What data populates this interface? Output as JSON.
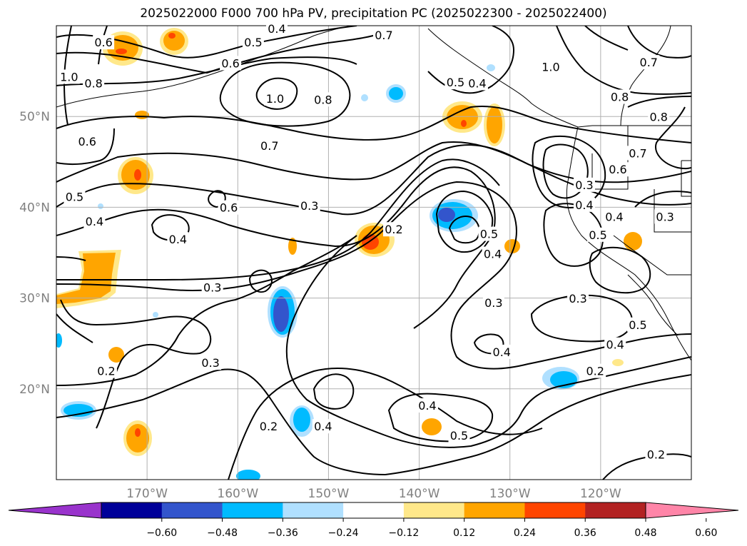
{
  "title": "2025022000 F000 700 hPa PV, precipitation PC (2025022300 - 2025022400)",
  "chart_data": {
    "type": "contour_map",
    "map": {
      "lon_range": [
        -180,
        -110
      ],
      "lat_range": [
        10,
        60
      ],
      "lon_ticks": [
        -170,
        -160,
        -150,
        -140,
        -130,
        -120
      ],
      "lon_tick_labels": [
        "170°W",
        "160°W",
        "150°W",
        "140°W",
        "130°W",
        "120°W"
      ],
      "lat_ticks": [
        20,
        30,
        40,
        50
      ],
      "lat_tick_labels": [
        "20°N",
        "30°N",
        "40°N",
        "50°N"
      ],
      "grid": true,
      "tick_label_color": "#808080"
    },
    "pv_contour_labels": [
      {
        "text": "0.6",
        "lon": -174.8,
        "lat": 58.1
      },
      {
        "text": "0.4",
        "lon": -155.7,
        "lat": 59.6
      },
      {
        "text": "0.5",
        "lon": -158.3,
        "lat": 58.1
      },
      {
        "text": "0.6",
        "lon": -160.8,
        "lat": 55.8
      },
      {
        "text": "0.7",
        "lon": -143.9,
        "lat": 58.9
      },
      {
        "text": "1.0",
        "lon": -178.6,
        "lat": 54.3
      },
      {
        "text": "0.8",
        "lon": -175.9,
        "lat": 53.6
      },
      {
        "text": "1.0",
        "lon": -155.9,
        "lat": 51.9
      },
      {
        "text": "0.8",
        "lon": -150.6,
        "lat": 51.8
      },
      {
        "text": "0.5",
        "lon": -136.0,
        "lat": 53.7
      },
      {
        "text": "0.4",
        "lon": -133.6,
        "lat": 53.6
      },
      {
        "text": "1.0",
        "lon": -125.5,
        "lat": 55.4
      },
      {
        "text": "0.7",
        "lon": -114.7,
        "lat": 55.9
      },
      {
        "text": "0.8",
        "lon": -117.9,
        "lat": 52.1
      },
      {
        "text": "0.8",
        "lon": -113.6,
        "lat": 49.9
      },
      {
        "text": "0.7",
        "lon": -115.9,
        "lat": 45.9
      },
      {
        "text": "0.6",
        "lon": -118.1,
        "lat": 44.1
      },
      {
        "text": "0.3",
        "lon": -121.8,
        "lat": 42.4
      },
      {
        "text": "0.4",
        "lon": -121.8,
        "lat": 40.2
      },
      {
        "text": "0.4",
        "lon": -118.5,
        "lat": 38.9
      },
      {
        "text": "0.5",
        "lon": -120.3,
        "lat": 36.9
      },
      {
        "text": "0.3",
        "lon": -112.9,
        "lat": 38.9
      },
      {
        "text": "0.6",
        "lon": -176.6,
        "lat": 47.2
      },
      {
        "text": "0.7",
        "lon": -156.5,
        "lat": 46.7
      },
      {
        "text": "0.5",
        "lon": -178.0,
        "lat": 41.1
      },
      {
        "text": "0.4",
        "lon": -175.8,
        "lat": 38.4
      },
      {
        "text": "0.6",
        "lon": -161.0,
        "lat": 39.9
      },
      {
        "text": "0.3",
        "lon": -152.1,
        "lat": 40.1
      },
      {
        "text": "0.4",
        "lon": -166.6,
        "lat": 36.4
      },
      {
        "text": "0.2",
        "lon": -142.8,
        "lat": 37.5
      },
      {
        "text": "0.5",
        "lon": -132.3,
        "lat": 37.0
      },
      {
        "text": "0.4",
        "lon": -131.9,
        "lat": 34.8
      },
      {
        "text": "0.3",
        "lon": -162.8,
        "lat": 31.1
      },
      {
        "text": "0.3",
        "lon": -131.8,
        "lat": 29.4
      },
      {
        "text": "0.3",
        "lon": -122.5,
        "lat": 29.9
      },
      {
        "text": "0.5",
        "lon": -115.9,
        "lat": 27.0
      },
      {
        "text": "0.4",
        "lon": -118.4,
        "lat": 24.8
      },
      {
        "text": "0.4",
        "lon": -130.9,
        "lat": 24.0
      },
      {
        "text": "0.2",
        "lon": -174.5,
        "lat": 21.9
      },
      {
        "text": "0.3",
        "lon": -163.0,
        "lat": 22.8
      },
      {
        "text": "0.2",
        "lon": -120.6,
        "lat": 21.9
      },
      {
        "text": "0.4",
        "lon": -139.1,
        "lat": 18.1
      },
      {
        "text": "0.2",
        "lon": -156.6,
        "lat": 15.8
      },
      {
        "text": "0.4",
        "lon": -150.6,
        "lat": 15.8
      },
      {
        "text": "0.5",
        "lon": -135.6,
        "lat": 14.8
      },
      {
        "text": "0.2",
        "lon": -113.9,
        "lat": 12.7
      }
    ],
    "colorbar": {
      "ticks": [
        "−0.60",
        "−0.48",
        "−0.36",
        "−0.24",
        "−0.12",
        "0.12",
        "0.24",
        "0.36",
        "0.48",
        "0.60"
      ],
      "colors": [
        "#9933cc",
        "#000099",
        "#3355cc",
        "#00bbff",
        "#b0e0ff",
        "#ffffff",
        "#ffe88a",
        "#ffa500",
        "#ff4500",
        "#b22222",
        "#ff85a8"
      ],
      "extend": "both"
    }
  }
}
